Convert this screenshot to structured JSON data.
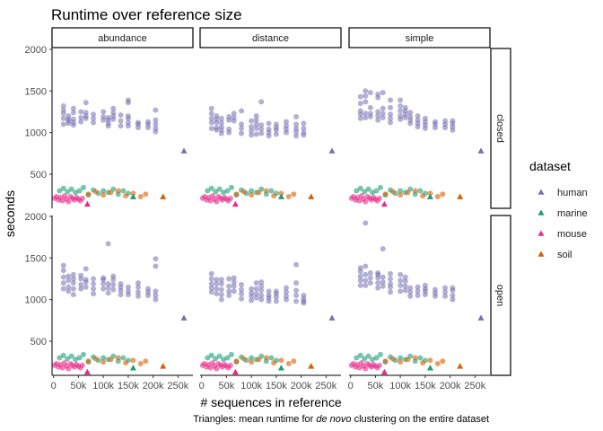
{
  "chart_data": {
    "type": "scatter",
    "title": "Runtime over reference size",
    "xlabel": "# sequences in reference",
    "ylabel": "seconds",
    "caption_pre": "Triangles: mean runtime for ",
    "caption_em": "de novo",
    "caption_post": " clustering on the entire dataset",
    "x_ticks": [
      0,
      50000,
      100000,
      150000,
      200000,
      250000
    ],
    "x_tick_labels": [
      "0",
      "50k",
      "100k",
      "150k",
      "200k",
      "250k"
    ],
    "xlim": [
      -3000,
      280000
    ],
    "y_ticks": [
      500,
      1000,
      1500,
      2000
    ],
    "y_tick_labels": [
      "500",
      "1000",
      "1500",
      "2000"
    ],
    "ylim": [
      90,
      2010
    ],
    "columns": [
      "abundance",
      "distance",
      "simple"
    ],
    "rows": [
      "closed",
      "open"
    ],
    "legend_title": "dataset",
    "legend_position": "right",
    "series": [
      {
        "name": "human",
        "color": "#7570B3"
      },
      {
        "name": "marine",
        "color": "#1B9E77"
      },
      {
        "name": "mouse",
        "color": "#E7298A"
      },
      {
        "name": "soil",
        "color": "#D95F02"
      }
    ],
    "human_x": [
      20000,
      30000,
      40000,
      55000,
      65000,
      80000,
      100000,
      110000,
      120000,
      135000,
      150000,
      170000,
      190000,
      205000
    ],
    "human_points": {
      "closed": {
        "abundance": [
          [
            1100,
            1170,
            1230,
            1270,
            1320
          ],
          [
            1110,
            1140,
            1160,
            1200
          ],
          [
            1090,
            1120,
            1160,
            1240,
            1290
          ],
          [
            1130,
            1180,
            1250
          ],
          [
            1170,
            1200,
            1240,
            1360
          ],
          [
            1120,
            1170,
            1220
          ],
          [
            1150,
            1190,
            1250
          ],
          [
            1080,
            1110,
            1150,
            1180
          ],
          [
            1160,
            1200,
            1240,
            1290
          ],
          [
            1080,
            1140,
            1210
          ],
          [
            1080,
            1120,
            1170,
            1200,
            1360,
            1390
          ],
          [
            1060,
            1100,
            1120
          ],
          [
            1060,
            1100,
            1130
          ],
          [
            1010,
            1050,
            1100,
            1150,
            1270
          ]
        ],
        "distance": [
          [
            1050,
            1120,
            1170,
            1230,
            1290
          ],
          [
            1030,
            1060,
            1120,
            1160,
            1200
          ],
          [
            990,
            1030,
            1070,
            1120,
            1170
          ],
          [
            1000,
            1040,
            1150,
            1190
          ],
          [
            1140,
            1180,
            1230
          ],
          [
            990,
            1050,
            1100,
            1260
          ],
          [
            970,
            1020,
            1070,
            1140
          ],
          [
            980,
            1050,
            1100,
            1150,
            1200
          ],
          [
            990,
            1040,
            1090,
            1370
          ],
          [
            960,
            1000,
            1040,
            1110
          ],
          [
            980,
            1030,
            1060,
            1100
          ],
          [
            1000,
            1040,
            1080,
            1130
          ],
          [
            960,
            1010,
            1050,
            1100,
            1190
          ],
          [
            970,
            1000,
            1050,
            1110
          ]
        ],
        "simple": [
          [
            1170,
            1220,
            1260,
            1350,
            1430
          ],
          [
            1180,
            1230,
            1370,
            1440,
            1500
          ],
          [
            1190,
            1230,
            1300,
            1480
          ],
          [
            1150,
            1200,
            1250,
            1420,
            1460
          ],
          [
            1180,
            1230,
            1290,
            1480
          ],
          [
            1120,
            1170,
            1220,
            1300,
            1390
          ],
          [
            1160,
            1200,
            1260,
            1320,
            1390
          ],
          [
            1180,
            1220,
            1260,
            1300
          ],
          [
            1110,
            1150,
            1190,
            1240
          ],
          [
            1070,
            1110,
            1150,
            1200
          ],
          [
            1050,
            1090,
            1130,
            1170
          ],
          [
            1060,
            1100,
            1130
          ],
          [
            1060,
            1100,
            1140
          ],
          [
            1030,
            1070,
            1110,
            1140
          ]
        ]
      },
      "open": {
        "abundance": [
          [
            1130,
            1200,
            1270,
            1350,
            1410
          ],
          [
            1100,
            1150,
            1230,
            1280
          ],
          [
            1060,
            1130,
            1200,
            1250,
            1300
          ],
          [
            1130,
            1180,
            1250,
            1290
          ],
          [
            1150,
            1210,
            1240,
            1370
          ],
          [
            1070,
            1130,
            1190,
            1250
          ],
          [
            1130,
            1190,
            1240,
            1260
          ],
          [
            1080,
            1140,
            1190,
            1670
          ],
          [
            1120,
            1180,
            1240,
            1280
          ],
          [
            1060,
            1110,
            1150,
            1190
          ],
          [
            1060,
            1100,
            1150
          ],
          [
            1040,
            1090,
            1150,
            1200
          ],
          [
            1050,
            1090,
            1130
          ],
          [
            1000,
            1050,
            1100,
            1400,
            1490
          ]
        ],
        "distance": [
          [
            1090,
            1140,
            1190,
            1250,
            1310
          ],
          [
            1070,
            1130,
            1190,
            1240
          ],
          [
            1000,
            1060,
            1120,
            1190,
            1240
          ],
          [
            1050,
            1100,
            1160,
            1250
          ],
          [
            1100,
            1160,
            1210,
            1260
          ],
          [
            1010,
            1070,
            1120,
            1180
          ],
          [
            990,
            1040,
            1080,
            1130
          ],
          [
            1020,
            1070,
            1130,
            1200
          ],
          [
            1000,
            1050,
            1110,
            1160,
            1210
          ],
          [
            980,
            1020,
            1050,
            1100
          ],
          [
            980,
            1030,
            1070,
            1100
          ],
          [
            1000,
            1040,
            1090,
            1140
          ],
          [
            980,
            1050,
            1110,
            1200,
            1420
          ],
          [
            960,
            980,
            1010,
            1050
          ]
        ],
        "simple": [
          [
            1170,
            1230,
            1280,
            1340,
            1380
          ],
          [
            1170,
            1230,
            1300,
            1400,
            1920
          ],
          [
            1200,
            1260,
            1320
          ],
          [
            1140,
            1200,
            1260,
            1300,
            1320
          ],
          [
            1160,
            1210,
            1270,
            1610
          ],
          [
            1090,
            1150,
            1190,
            1250,
            1310
          ],
          [
            1100,
            1170,
            1230,
            1300
          ],
          [
            1110,
            1160,
            1220,
            1270
          ],
          [
            1040,
            1090,
            1140
          ],
          [
            1050,
            1100,
            1150
          ],
          [
            1060,
            1100,
            1130,
            1170
          ],
          [
            1040,
            1080,
            1120
          ],
          [
            1040,
            1090,
            1140
          ],
          [
            1000,
            1050,
            1110,
            1140
          ]
        ]
      }
    },
    "cluster_points": {
      "marine": {
        "x": [
          12000,
          20000,
          28000,
          36000,
          44000,
          52000,
          60000,
          70000,
          80000,
          90000,
          100000,
          110000,
          120000,
          130000,
          140000,
          150000
        ],
        "y": [
          300,
          330,
          290,
          320,
          280,
          300,
          340,
          250,
          310,
          270,
          300,
          280,
          320,
          260,
          300,
          270
        ]
      },
      "soil": {
        "x": [
          70000,
          85000,
          100000,
          115000,
          130000,
          145000,
          160000,
          175000,
          185000
        ],
        "y": [
          260,
          290,
          250,
          280,
          300,
          240,
          270,
          230,
          260
        ]
      },
      "mouse": {
        "x": [
          2000,
          6000,
          10000,
          14000,
          18000,
          22000,
          26000,
          30000,
          34000,
          38000,
          42000,
          46000,
          50000,
          54000,
          58000
        ],
        "y": [
          210,
          230,
          190,
          220,
          180,
          240,
          200,
          170,
          230,
          210,
          190,
          220,
          200,
          180,
          210
        ]
      }
    },
    "triangles": {
      "closed": {
        "human": [
          262000,
          780
        ],
        "marine": [
          160000,
          230
        ],
        "mouse": [
          68000,
          140
        ],
        "soil": [
          220000,
          230
        ]
      },
      "open": {
        "human": [
          262000,
          780
        ],
        "marine": [
          160000,
          180
        ],
        "mouse": [
          68000,
          130
        ],
        "soil": [
          220000,
          200
        ]
      }
    }
  }
}
